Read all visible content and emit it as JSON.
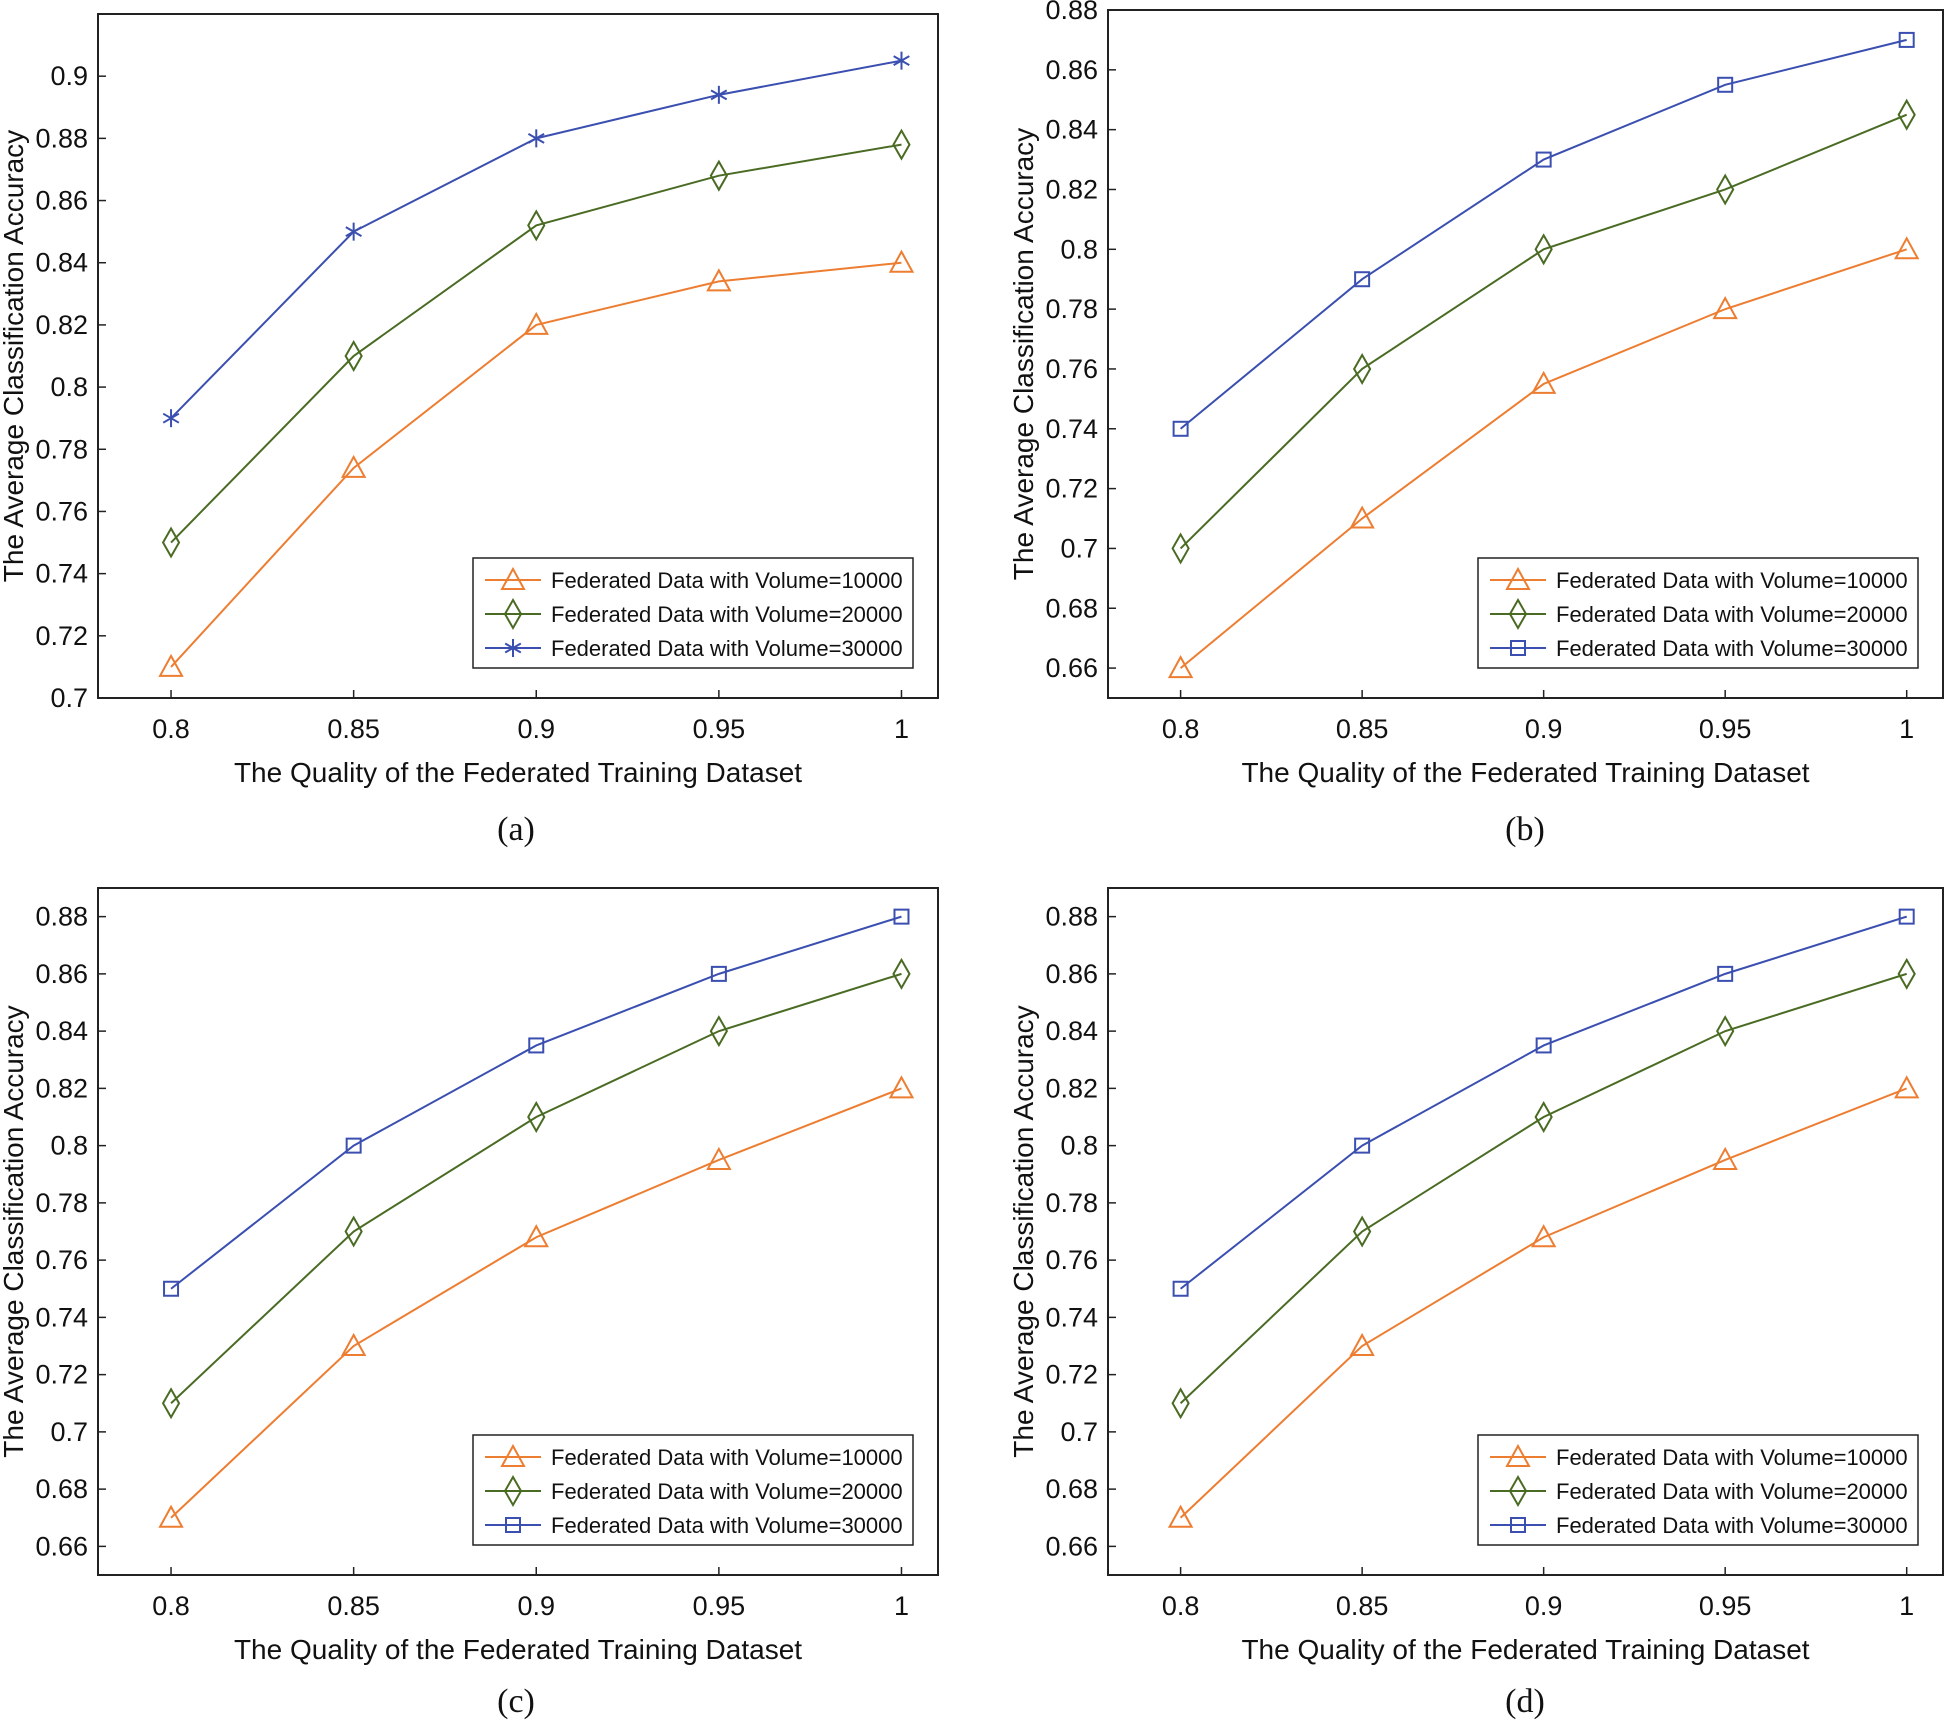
{
  "colors": {
    "series1": "#ED7D31",
    "series2": "#4A6B23",
    "series3": "#3A4FB0",
    "axis": "#222222"
  },
  "chart_data": [
    {
      "type": "line",
      "panel": "a",
      "caption": "(a)",
      "xlabel": "The Quality of the Federated Training Dataset",
      "ylabel": "The Average Classification Accuracy",
      "x": [
        0.8,
        0.85,
        0.9,
        0.95,
        1
      ],
      "xtick_labels": [
        "0.8",
        "0.85",
        "0.9",
        "0.95",
        "1"
      ],
      "xlim": [
        0.78,
        1.01
      ],
      "ylim": [
        0.7,
        0.92
      ],
      "yticks": [
        0.7,
        0.72,
        0.74,
        0.76,
        0.78,
        0.8,
        0.82,
        0.84,
        0.86,
        0.88,
        0.9
      ],
      "ytick_labels": [
        "0.7",
        "0.72",
        "0.74",
        "0.76",
        "0.78",
        "0.8",
        "0.82",
        "0.84",
        "0.86",
        "0.88",
        "0.9"
      ],
      "legend_position": "lower-right",
      "series": [
        {
          "name": "Federated Data with Volume=10000",
          "marker": "triangle",
          "color_key": "series1",
          "values": [
            0.71,
            0.774,
            0.82,
            0.834,
            0.84
          ]
        },
        {
          "name": "Federated Data with Volume=20000",
          "marker": "diamond",
          "color_key": "series2",
          "values": [
            0.75,
            0.81,
            0.852,
            0.868,
            0.878
          ]
        },
        {
          "name": "Federated Data with Volume=30000",
          "marker": "asterisk",
          "color_key": "series3",
          "values": [
            0.79,
            0.85,
            0.88,
            0.894,
            0.905
          ]
        }
      ]
    },
    {
      "type": "line",
      "panel": "b",
      "caption": "(b)",
      "xlabel": "The Quality of the Federated Training Dataset",
      "ylabel": "The Average Classification Accuracy",
      "x": [
        0.8,
        0.85,
        0.9,
        0.95,
        1
      ],
      "xtick_labels": [
        "0.8",
        "0.85",
        "0.9",
        "0.95",
        "1"
      ],
      "xlim": [
        0.78,
        1.01
      ],
      "ylim": [
        0.65,
        0.88
      ],
      "yticks": [
        0.66,
        0.68,
        0.7,
        0.72,
        0.74,
        0.76,
        0.78,
        0.8,
        0.82,
        0.84,
        0.86,
        0.88
      ],
      "ytick_labels": [
        "0.66",
        "0.68",
        "0.7",
        "0.72",
        "0.74",
        "0.76",
        "0.78",
        "0.8",
        "0.82",
        "0.84",
        "0.86",
        "0.88"
      ],
      "legend_position": "lower-right",
      "series": [
        {
          "name": "Federated Data with Volume=10000",
          "marker": "triangle",
          "color_key": "series1",
          "values": [
            0.66,
            0.71,
            0.755,
            0.78,
            0.8
          ]
        },
        {
          "name": "Federated Data with Volume=20000",
          "marker": "diamond",
          "color_key": "series2",
          "values": [
            0.7,
            0.76,
            0.8,
            0.82,
            0.845
          ]
        },
        {
          "name": "Federated Data with Volume=30000",
          "marker": "square",
          "color_key": "series3",
          "values": [
            0.74,
            0.79,
            0.83,
            0.855,
            0.87
          ]
        }
      ]
    },
    {
      "type": "line",
      "panel": "c",
      "caption": "(c)",
      "xlabel": "The Quality of the Federated Training Dataset",
      "ylabel": "The Average Classification Accuracy",
      "x": [
        0.8,
        0.85,
        0.9,
        0.95,
        1
      ],
      "xtick_labels": [
        "0.8",
        "0.85",
        "0.9",
        "0.95",
        "1"
      ],
      "xlim": [
        0.78,
        1.01
      ],
      "ylim": [
        0.65,
        0.89
      ],
      "yticks": [
        0.66,
        0.68,
        0.7,
        0.72,
        0.74,
        0.76,
        0.78,
        0.8,
        0.82,
        0.84,
        0.86,
        0.88
      ],
      "ytick_labels": [
        "0.66",
        "0.68",
        "0.7",
        "0.72",
        "0.74",
        "0.76",
        "0.78",
        "0.8",
        "0.82",
        "0.84",
        "0.86",
        "0.88"
      ],
      "legend_position": "lower-right",
      "series": [
        {
          "name": "Federated Data with Volume=10000",
          "marker": "triangle",
          "color_key": "series1",
          "values": [
            0.67,
            0.73,
            0.768,
            0.795,
            0.82
          ]
        },
        {
          "name": "Federated Data with Volume=20000",
          "marker": "diamond",
          "color_key": "series2",
          "values": [
            0.71,
            0.77,
            0.81,
            0.84,
            0.86
          ]
        },
        {
          "name": "Federated Data with Volume=30000",
          "marker": "square",
          "color_key": "series3",
          "values": [
            0.75,
            0.8,
            0.835,
            0.86,
            0.88
          ]
        }
      ]
    },
    {
      "type": "line",
      "panel": "d",
      "caption": "(d)",
      "xlabel": "The Quality of the Federated Training Dataset",
      "ylabel": "The Average Classification Accuracy",
      "x": [
        0.8,
        0.85,
        0.9,
        0.95,
        1
      ],
      "xtick_labels": [
        "0.8",
        "0.85",
        "0.9",
        "0.95",
        "1"
      ],
      "xlim": [
        0.78,
        1.01
      ],
      "ylim": [
        0.65,
        0.89
      ],
      "yticks": [
        0.66,
        0.68,
        0.7,
        0.72,
        0.74,
        0.76,
        0.78,
        0.8,
        0.82,
        0.84,
        0.86,
        0.88
      ],
      "ytick_labels": [
        "0.66",
        "0.68",
        "0.7",
        "0.72",
        "0.74",
        "0.76",
        "0.78",
        "0.8",
        "0.82",
        "0.84",
        "0.86",
        "0.88"
      ],
      "legend_position": "lower-right",
      "series": [
        {
          "name": "Federated Data with Volume=10000",
          "marker": "triangle",
          "color_key": "series1",
          "values": [
            0.67,
            0.73,
            0.768,
            0.795,
            0.82
          ]
        },
        {
          "name": "Federated Data with Volume=20000",
          "marker": "diamond",
          "color_key": "series2",
          "values": [
            0.71,
            0.77,
            0.81,
            0.84,
            0.86
          ]
        },
        {
          "name": "Federated Data with Volume=30000",
          "marker": "square",
          "color_key": "series3",
          "values": [
            0.75,
            0.8,
            0.835,
            0.86,
            0.88
          ]
        }
      ]
    }
  ]
}
